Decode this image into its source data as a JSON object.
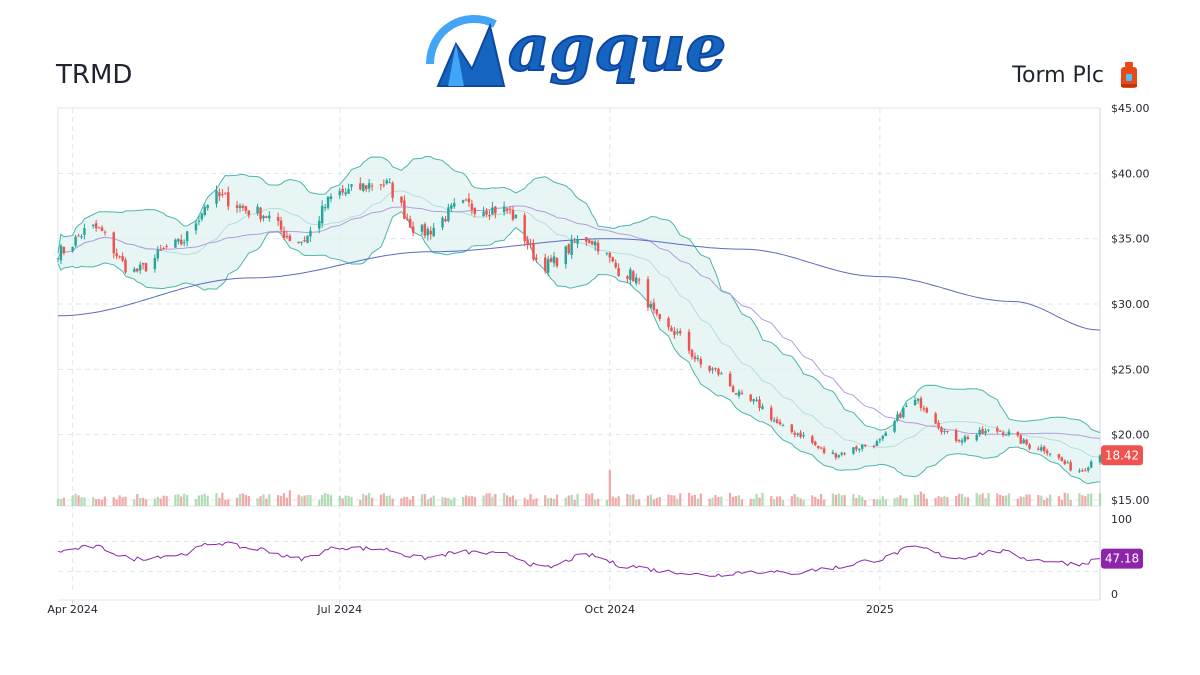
{
  "header": {
    "ticker": "TRMD",
    "company": "Torm Plc",
    "logo_text": "agque",
    "logo_icon": "m-swoosh-logo",
    "company_icon": "fuel-can-icon"
  },
  "colors": {
    "up": "#26a69a",
    "down": "#ef5350",
    "band_fill": "#e0f2f1",
    "band_line": "#4db6ac",
    "sma_short": "#b39ddb",
    "sma_long": "#5c6bc0",
    "rsi": "#8e24aa",
    "last_price_badge": "#ef5350",
    "rsi_badge": "#8e24aa",
    "logo_blue": "#1565c0",
    "logo_light": "#42a5f5"
  },
  "chart_data": {
    "type": "candlestick",
    "symbol": "TRMD",
    "x_ticks": [
      "Apr 2024",
      "Jul 2024",
      "Oct 2024",
      "2025"
    ],
    "x_tick_dates": [
      "2024-04-01",
      "2024-07-01",
      "2024-10-01",
      "2025-01-01"
    ],
    "x_range": [
      "2024-03-27",
      "2025-03-17"
    ],
    "price_axis": {
      "ticks": [
        "$15.00",
        "$20.00",
        "$25.00",
        "$30.00",
        "$35.00",
        "$40.00",
        "$45.00"
      ],
      "values": [
        15,
        20,
        25,
        30,
        35,
        40,
        45
      ],
      "ylim": [
        15,
        45
      ]
    },
    "rsi_axis": {
      "ticks": [
        "0",
        "100"
      ],
      "values": [
        0,
        100
      ],
      "ylim": [
        0,
        100
      ],
      "guides": [
        30,
        70
      ]
    },
    "last_price": "18.42",
    "last_rsi": "47.18",
    "grid": true,
    "close_anchors": [
      [
        "2024-03-27",
        34.0
      ],
      [
        "2024-04-08",
        35.8
      ],
      [
        "2024-04-22",
        32.5
      ],
      [
        "2024-05-06",
        34.5
      ],
      [
        "2024-05-20",
        38.2
      ],
      [
        "2024-06-03",
        37.0
      ],
      [
        "2024-06-17",
        34.8
      ],
      [
        "2024-07-01",
        38.5
      ],
      [
        "2024-07-15",
        39.3
      ],
      [
        "2024-07-29",
        35.5
      ],
      [
        "2024-08-12",
        37.5
      ],
      [
        "2024-08-26",
        37.2
      ],
      [
        "2024-09-09",
        33.0
      ],
      [
        "2024-09-23",
        35.0
      ],
      [
        "2024-10-07",
        32.3
      ],
      [
        "2024-10-21",
        28.0
      ],
      [
        "2024-11-04",
        25.0
      ],
      [
        "2024-11-18",
        22.5
      ],
      [
        "2024-12-02",
        20.2
      ],
      [
        "2024-12-16",
        18.5
      ],
      [
        "2024-12-30",
        19.3
      ],
      [
        "2025-01-13",
        22.5
      ],
      [
        "2025-01-27",
        19.7
      ],
      [
        "2025-02-10",
        20.3
      ],
      [
        "2025-02-24",
        19.0
      ],
      [
        "2025-03-10",
        17.3
      ],
      [
        "2025-03-17",
        18.42
      ]
    ],
    "rsi_anchors": [
      [
        "2024-03-27",
        57
      ],
      [
        "2024-04-08",
        63
      ],
      [
        "2024-04-22",
        47
      ],
      [
        "2024-05-06",
        52
      ],
      [
        "2024-05-20",
        68
      ],
      [
        "2024-06-03",
        60
      ],
      [
        "2024-06-17",
        47
      ],
      [
        "2024-07-01",
        62
      ],
      [
        "2024-07-15",
        60
      ],
      [
        "2024-07-29",
        48
      ],
      [
        "2024-08-12",
        56
      ],
      [
        "2024-08-26",
        53
      ],
      [
        "2024-09-09",
        35
      ],
      [
        "2024-09-23",
        52
      ],
      [
        "2024-10-07",
        37
      ],
      [
        "2024-10-21",
        30
      ],
      [
        "2024-11-04",
        25
      ],
      [
        "2024-11-18",
        30
      ],
      [
        "2024-12-02",
        28
      ],
      [
        "2024-12-16",
        35
      ],
      [
        "2024-12-30",
        45
      ],
      [
        "2025-01-13",
        62
      ],
      [
        "2025-01-27",
        48
      ],
      [
        "2025-02-10",
        57
      ],
      [
        "2025-02-24",
        45
      ],
      [
        "2025-03-10",
        40
      ],
      [
        "2025-03-17",
        47.18
      ]
    ],
    "sma_long_anchors": [
      [
        "2024-03-27",
        29.1
      ],
      [
        "2024-06-01",
        32.0
      ],
      [
        "2024-08-01",
        34.0
      ],
      [
        "2024-10-01",
        35.0
      ],
      [
        "2024-11-15",
        34.2
      ],
      [
        "2025-01-01",
        32.1
      ],
      [
        "2025-02-15",
        30.2
      ],
      [
        "2025-03-17",
        28.0
      ]
    ],
    "volume_peaks": [
      [
        "2024-10-01",
        3.0
      ],
      [
        "2024-06-14",
        1.3
      ],
      [
        "2025-01-15",
        1.2
      ],
      [
        "2025-03-05",
        1.1
      ]
    ]
  }
}
